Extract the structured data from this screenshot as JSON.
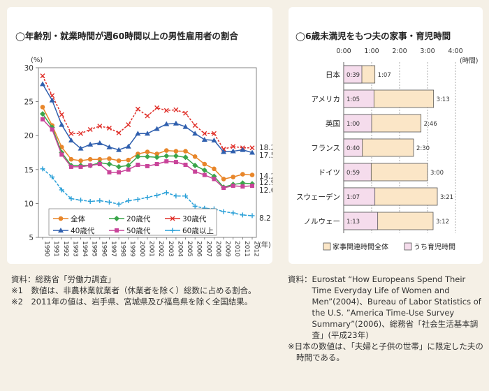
{
  "chart_data": [
    {
      "type": "line",
      "title": "◯年齢別・就業時間が週60時間以上の男性雇用者の割合",
      "yunit": "(%)",
      "xunit": "(年)",
      "ylim": [
        5,
        30
      ],
      "yticks": [
        "5",
        "10",
        "15",
        "20",
        "25",
        "30"
      ],
      "x": [
        "1990",
        "1991",
        "1992",
        "1993",
        "1994",
        "1995",
        "1996",
        "1997",
        "1998",
        "1999",
        "2000",
        "2001",
        "2002",
        "2003",
        "2004",
        "2005",
        "2006",
        "2007",
        "2008",
        "2009",
        "2010",
        "2011",
        "2012"
      ],
      "series": [
        {
          "name": "全体",
          "color": "#e8862a",
          "marker": "circle",
          "end_label": "14.2",
          "values": [
            24.2,
            21.5,
            18.3,
            16.5,
            16.3,
            16.5,
            16.5,
            16.6,
            16.3,
            16.4,
            17.3,
            17.6,
            17.3,
            17.8,
            17.7,
            17.7,
            16.9,
            15.8,
            15.1,
            13.6,
            13.9,
            14.3,
            14.2
          ]
        },
        {
          "name": "20歳代",
          "color": "#3aa54a",
          "marker": "diamond",
          "end_label": "12.9",
          "values": [
            23.2,
            21.2,
            17.5,
            15.6,
            15.6,
            15.6,
            16.0,
            15.8,
            15.4,
            15.6,
            16.9,
            16.9,
            16.8,
            17.0,
            17.0,
            16.8,
            15.6,
            14.9,
            14.0,
            12.4,
            12.8,
            13.0,
            12.9
          ]
        },
        {
          "name": "30歳代",
          "color": "#e0302a",
          "marker": "cross",
          "end_label": "18.2",
          "values": [
            28.8,
            25.9,
            23.1,
            20.3,
            20.3,
            20.9,
            21.4,
            21.1,
            20.4,
            21.6,
            23.9,
            22.9,
            24.1,
            23.7,
            23.8,
            23.3,
            21.5,
            20.3,
            20.3,
            18.0,
            18.4,
            18.2,
            18.2
          ]
        },
        {
          "name": "40歳代",
          "color": "#2f5fae",
          "marker": "triangle",
          "end_label": "17.5",
          "values": [
            27.6,
            25.2,
            21.6,
            19.3,
            18.1,
            18.7,
            18.9,
            18.3,
            17.9,
            18.4,
            20.3,
            20.3,
            21.0,
            21.7,
            21.8,
            21.3,
            20.3,
            19.4,
            19.3,
            17.6,
            17.7,
            17.9,
            17.5
          ]
        },
        {
          "name": "50歳代",
          "color": "#c9449a",
          "marker": "square",
          "end_label": "12.6",
          "values": [
            22.4,
            20.9,
            17.2,
            15.4,
            15.4,
            15.6,
            15.8,
            14.6,
            14.6,
            15.0,
            15.7,
            15.5,
            15.8,
            16.2,
            16.1,
            15.7,
            14.7,
            14.2,
            13.6,
            12.3,
            12.6,
            12.5,
            12.6
          ]
        },
        {
          "name": "60歳以上",
          "color": "#2aa0d8",
          "marker": "plus",
          "end_label": "8.2",
          "values": [
            15.1,
            13.9,
            12.0,
            10.7,
            10.5,
            10.3,
            10.4,
            10.2,
            9.9,
            10.4,
            10.6,
            10.9,
            11.2,
            11.6,
            11.1,
            11.1,
            9.6,
            9.3,
            9.2,
            8.8,
            8.6,
            8.3,
            8.2
          ]
        }
      ]
    },
    {
      "type": "bar",
      "title": "◯6歳未満児をもつ夫の家事・育児時間",
      "time_unit": "(時間)",
      "xlim_minutes": [
        0,
        240
      ],
      "xticks": [
        "0:00",
        "1:00",
        "2:00",
        "3:00",
        "4:00"
      ],
      "categories": [
        "日本",
        "アメリカ",
        "英国",
        "フランス",
        "ドイツ",
        "スウェーデン",
        "ノルウェー"
      ],
      "series": [
        {
          "name": "家事関連時間全体",
          "color": "#fbe6c7",
          "labels": [
            "1:07",
            "3:13",
            "2:46",
            "2:30",
            "3:00",
            "3:21",
            "3:12"
          ],
          "values_minutes": [
            67,
            193,
            166,
            150,
            180,
            201,
            192
          ]
        },
        {
          "name": "うち育児時間",
          "color": "#f5dcec",
          "labels": [
            "0:39",
            "1:05",
            "1:00",
            "0:40",
            "0:59",
            "1:07",
            "1:13"
          ],
          "values_minutes": [
            39,
            65,
            60,
            40,
            59,
            67,
            73
          ]
        }
      ]
    }
  ],
  "notes_left": [
    {
      "label": "資料：",
      "text": "総務省「労働力調査」"
    },
    {
      "label": "※1　",
      "text": "数値は、非農林業就業者（休業者を除く）総数に占める割合。"
    },
    {
      "label": "※2　",
      "text": "2011年の値は、岩手県、宮城県及び福島県を除く全国結果。"
    }
  ],
  "notes_right": {
    "source_label": "資料：",
    "source_text": "Eurostat “How Europeans Spend Their Time Everyday Life of Women and Men”(2004)、Bureau of Labor Statistics of the U.S. ”America Time-Use Survey Summary”(2006)、総務省「社会生活基本調査」(平成23年)",
    "footnote": "※日本の数値は、「夫婦と子供の世帯」に限定した夫の時間である。"
  }
}
